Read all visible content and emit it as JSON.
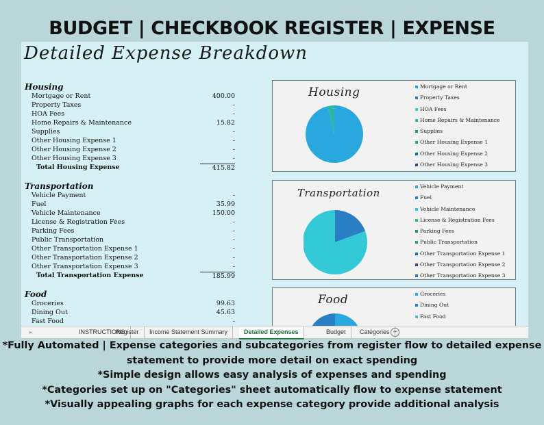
{
  "banner": "BUDGET | CHECKBOOK REGISTER | EXPENSE TRACKER",
  "sheet_title": "Detailed Expense Breakdown",
  "sections": {
    "housing": {
      "title": "Housing",
      "rows": [
        {
          "label": "Mortgage or Rent",
          "value": "400.00"
        },
        {
          "label": "Property Taxes",
          "value": "-"
        },
        {
          "label": "HOA Fees",
          "value": "-"
        },
        {
          "label": "Home Repairs & Maintenance",
          "value": "15.82"
        },
        {
          "label": "Supplies",
          "value": "-"
        },
        {
          "label": "Other Housing Expense 1",
          "value": "-"
        },
        {
          "label": "Other Housing Expense 2",
          "value": "-"
        },
        {
          "label": "Other Housing Expense 3",
          "value": "-"
        }
      ],
      "total_label": "Total Housing Expense",
      "total_value": "415.82"
    },
    "transportation": {
      "title": "Transportation",
      "rows": [
        {
          "label": "Vehicle Payment",
          "value": "-"
        },
        {
          "label": "Fuel",
          "value": "35.99"
        },
        {
          "label": "Vehicle Maintenance",
          "value": "150.00"
        },
        {
          "label": "License & Registration Fees",
          "value": "-"
        },
        {
          "label": "Parking Fees",
          "value": "-"
        },
        {
          "label": "Public Transportation",
          "value": "-"
        },
        {
          "label": "Other Transportation Expense 1",
          "value": "-"
        },
        {
          "label": "Other Transportation Expense 2",
          "value": "-"
        },
        {
          "label": "Other Transportation Expense 3",
          "value": "-"
        }
      ],
      "total_label": "Total Transportation Expense",
      "total_value": "185.99"
    },
    "food": {
      "title": "Food",
      "rows": [
        {
          "label": "Groceries",
          "value": "99.63"
        },
        {
          "label": "Dining Out",
          "value": "45.63"
        },
        {
          "label": "Fast Food",
          "value": "-"
        }
      ]
    }
  },
  "charts": {
    "housing": {
      "title": "Housing",
      "legend": [
        {
          "name": "Mortgage or Rent",
          "color": "#29a8e0"
        },
        {
          "name": "Property Taxes",
          "color": "#2a7fc4"
        },
        {
          "name": "HOA Fees",
          "color": "#33c9d6"
        },
        {
          "name": "Home Repairs & Maintenance",
          "color": "#2fb7a6"
        },
        {
          "name": "Supplies",
          "color": "#2e9a5a"
        },
        {
          "name": "Other Housing Expense 1",
          "color": "#3a9c8a"
        },
        {
          "name": "Other Housing Expense 2",
          "color": "#1f6aa5"
        },
        {
          "name": "Other Housing Expense 3",
          "color": "#2b4f7c"
        }
      ],
      "slices": [
        400.0,
        0,
        0,
        15.82,
        0,
        0,
        0,
        0
      ]
    },
    "transportation": {
      "title": "Transportation",
      "legend": [
        {
          "name": "Vehicle Payment",
          "color": "#29a8e0"
        },
        {
          "name": "Fuel",
          "color": "#2a7fc4"
        },
        {
          "name": "Vehicle Maintenance",
          "color": "#33c9d6"
        },
        {
          "name": "License & Registration Fees",
          "color": "#2fb7a6"
        },
        {
          "name": "Parking Fees",
          "color": "#2e9a5a"
        },
        {
          "name": "Public Transportation",
          "color": "#3a9c8a"
        },
        {
          "name": "Other Transportation Expense 1",
          "color": "#1f6aa5"
        },
        {
          "name": "Other Transportation Expense 2",
          "color": "#2b4f7c"
        },
        {
          "name": "Other Transportation Expense 3",
          "color": "#2c6f9e"
        }
      ],
      "slices": [
        0,
        35.99,
        150.0,
        0,
        0,
        0,
        0,
        0,
        0
      ]
    },
    "food": {
      "title": "Food",
      "legend": [
        {
          "name": "Groceries",
          "color": "#29a8e0"
        },
        {
          "name": "Dining Out",
          "color": "#2a7fc4"
        },
        {
          "name": "Fast Food",
          "color": "#33c9d6"
        }
      ],
      "slices": [
        99.63,
        45.63,
        0
      ]
    }
  },
  "tabs": [
    {
      "label": "INSTRUCTIONS",
      "active": false
    },
    {
      "label": "Register",
      "active": false
    },
    {
      "label": "Income Statement Summary",
      "active": false
    },
    {
      "label": "Detailed Expenses",
      "active": true
    },
    {
      "label": "Budget",
      "active": false
    },
    {
      "label": "Categories",
      "active": false
    }
  ],
  "tab_add_symbol": "+",
  "tab_nav_symbol": "▸",
  "notes": [
    "*Fully Automated | Expense categories and subcategories from register flow to detailed expense",
    "statement to provide more detail on exact spending",
    "*Simple design allows easy analysis of expenses and spending",
    "*Categories set up on \"Categories\" sheet automatically flow to expense statement",
    "*Visually appealing graphs for each expense category provide additional analysis"
  ]
}
